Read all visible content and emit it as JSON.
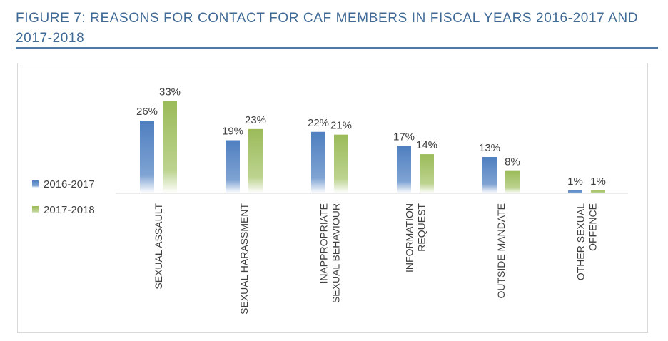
{
  "figure_title": "FIGURE 7: REASONS FOR CONTACT FOR CAF MEMBERS IN FISCAL YEARS 2016-2017 AND 2017-2018",
  "chart_data": {
    "type": "bar",
    "title": "FIGURE 7: REASONS FOR CONTACT FOR CAF MEMBERS IN FISCAL YEARS 2016-2017 AND 2017-2018",
    "categories": [
      [
        "SEXUAL ASSAULT"
      ],
      [
        "SEXUAL HARASSMENT"
      ],
      [
        "INAPPROPRIATE",
        "SEXUAL BEHAVIOUR"
      ],
      [
        "INFORMATION",
        "REQUEST"
      ],
      [
        "OUTSIDE MANDATE"
      ],
      [
        "OTHER SEXUAL",
        "OFFENCE"
      ]
    ],
    "series": [
      {
        "name": "2016-2017",
        "values": [
          26,
          19,
          22,
          17,
          13,
          1
        ],
        "labels": [
          "26%",
          "19%",
          "22%",
          "17%",
          "13%",
          "1%"
        ],
        "color": "#4f7fc0"
      },
      {
        "name": "2017-2018",
        "values": [
          33,
          23,
          21,
          14,
          8,
          1
        ],
        "labels": [
          "33%",
          "23%",
          "21%",
          "14%",
          "8%",
          "1%"
        ],
        "color": "#9bbb59"
      }
    ],
    "xlabel": "",
    "ylabel": "",
    "ylim": [
      0,
      35
    ],
    "grid": false,
    "legend": "left"
  }
}
